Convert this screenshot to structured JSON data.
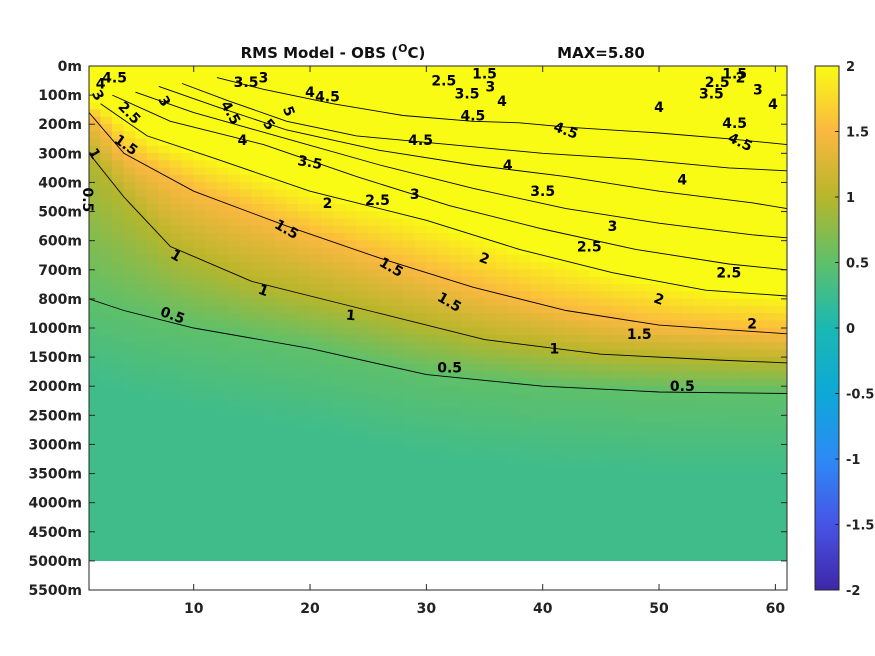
{
  "chart_data": {
    "type": "heatmap",
    "title_parts": {
      "pre": "RMS Model - OBS (",
      "sup": "O",
      "post": "C)"
    },
    "max_label": "MAX=5.80",
    "x_ticks": [
      "10",
      "20",
      "30",
      "40",
      "50",
      "60"
    ],
    "x_tick_values": [
      10,
      20,
      30,
      40,
      50,
      60
    ],
    "xlim": [
      1,
      61
    ],
    "y_ticks": [
      "0m",
      "100m",
      "200m",
      "300m",
      "400m",
      "500m",
      "600m",
      "700m",
      "800m",
      "1000m",
      "1500m",
      "2000m",
      "2500m",
      "3000m",
      "3500m",
      "4000m",
      "4500m",
      "5000m",
      "5500m"
    ],
    "clim": [
      -2,
      2
    ],
    "colorbar_ticks": [
      "2",
      "1.5",
      "1",
      "0.5",
      "0",
      "-0.5",
      "-1",
      "-1.5",
      "-2"
    ],
    "colorbar_values": [
      2,
      1.5,
      1,
      0.5,
      0,
      -0.5,
      -1,
      -1.5,
      -2
    ],
    "contour_levels": [
      0.5,
      1,
      1.5,
      2,
      2.5,
      3,
      3.5,
      4,
      4.5
    ],
    "contours": [
      {
        "level": 0.5,
        "points": [
          [
            1,
            8.0
          ],
          [
            4,
            8.4
          ],
          [
            10,
            9.0
          ],
          [
            20,
            9.7
          ],
          [
            30,
            10.6
          ],
          [
            40,
            11.0
          ],
          [
            50,
            11.2
          ],
          [
            61,
            11.25
          ]
        ]
      },
      {
        "level": 1,
        "points": [
          [
            1,
            3.0
          ],
          [
            4,
            4.5
          ],
          [
            8,
            6.2
          ],
          [
            15,
            7.4
          ],
          [
            25,
            8.4
          ],
          [
            35,
            9.4
          ],
          [
            45,
            9.9
          ],
          [
            55,
            10.1
          ],
          [
            61,
            10.2
          ]
        ]
      },
      {
        "level": 1.5,
        "points": [
          [
            1,
            1.6
          ],
          [
            4,
            3.0
          ],
          [
            10,
            4.3
          ],
          [
            18,
            5.5
          ],
          [
            26,
            6.6
          ],
          [
            34,
            7.6
          ],
          [
            42,
            8.4
          ],
          [
            50,
            8.9
          ],
          [
            61,
            9.2
          ]
        ]
      },
      {
        "level": 2,
        "points": [
          [
            2,
            1.3
          ],
          [
            6,
            2.4
          ],
          [
            12,
            3.2
          ],
          [
            20,
            4.3
          ],
          [
            30,
            5.3
          ],
          [
            38,
            6.3
          ],
          [
            46,
            7.1
          ],
          [
            54,
            7.7
          ],
          [
            61,
            7.9
          ]
        ]
      },
      {
        "level": 2.5,
        "points": [
          [
            3,
            1.0
          ],
          [
            8,
            1.9
          ],
          [
            16,
            2.7
          ],
          [
            24,
            3.8
          ],
          [
            32,
            4.8
          ],
          [
            40,
            5.6
          ],
          [
            48,
            6.3
          ],
          [
            56,
            6.8
          ],
          [
            61,
            7.0
          ]
        ]
      },
      {
        "level": 3,
        "points": [
          [
            5,
            0.9
          ],
          [
            10,
            1.6
          ],
          [
            18,
            2.5
          ],
          [
            26,
            3.4
          ],
          [
            34,
            4.2
          ],
          [
            42,
            4.9
          ],
          [
            50,
            5.4
          ],
          [
            58,
            5.8
          ],
          [
            61,
            5.9
          ]
        ]
      },
      {
        "level": 3.5,
        "points": [
          [
            7,
            0.7
          ],
          [
            12,
            1.4
          ],
          [
            18,
            2.2
          ],
          [
            26,
            2.9
          ],
          [
            34,
            3.4
          ],
          [
            42,
            3.8
          ],
          [
            50,
            4.3
          ],
          [
            58,
            4.7
          ],
          [
            61,
            4.9
          ]
        ]
      },
      {
        "level": 4,
        "points": [
          [
            9,
            0.6
          ],
          [
            13,
            1.2
          ],
          [
            18,
            1.9
          ],
          [
            24,
            2.4
          ],
          [
            32,
            2.7
          ],
          [
            40,
            3.0
          ],
          [
            48,
            3.2
          ],
          [
            56,
            3.5
          ],
          [
            61,
            3.6
          ]
        ]
      },
      {
        "level": 4.5,
        "points": [
          [
            12,
            0.4
          ],
          [
            16,
            0.8
          ],
          [
            22,
            1.3
          ],
          [
            28,
            1.7
          ],
          [
            34,
            1.9
          ],
          [
            38,
            1.95
          ],
          [
            42,
            2.1
          ],
          [
            50,
            2.3
          ],
          [
            56,
            2.5
          ],
          [
            61,
            2.7
          ]
        ]
      }
    ],
    "contour_labels": [
      {
        "text": "0.5",
        "x": 8.2,
        "y": 8.55,
        "angle": 20
      },
      {
        "text": "1",
        "x": 23.5,
        "y": 8.55,
        "angle": 5
      },
      {
        "text": "0.5",
        "x": 32,
        "y": 10.35,
        "angle": 0
      },
      {
        "text": "0.5",
        "x": 52,
        "y": 11.0,
        "angle": 0
      },
      {
        "text": "1",
        "x": 41,
        "y": 9.7,
        "angle": 0
      },
      {
        "text": "1",
        "x": 8.5,
        "y": 6.5,
        "angle": 30
      },
      {
        "text": "1",
        "x": 16,
        "y": 7.7,
        "angle": 20
      },
      {
        "text": "1",
        "x": 1.5,
        "y": 3.0,
        "angle": 60
      },
      {
        "text": "0.5",
        "x": 0.9,
        "y": 4.6,
        "angle": 90
      },
      {
        "text": "1.5",
        "x": 4.2,
        "y": 2.7,
        "angle": 35
      },
      {
        "text": "1.5",
        "x": 18,
        "y": 5.6,
        "angle": 30
      },
      {
        "text": "1.5",
        "x": 27,
        "y": 6.9,
        "angle": 30
      },
      {
        "text": "1.5",
        "x": 32,
        "y": 8.1,
        "angle": 30
      },
      {
        "text": "1.5",
        "x": 48.3,
        "y": 9.2,
        "angle": 0
      },
      {
        "text": "2",
        "x": 21.5,
        "y": 4.7,
        "angle": 0
      },
      {
        "text": "2",
        "x": 35,
        "y": 6.6,
        "angle": 20
      },
      {
        "text": "2",
        "x": 50,
        "y": 8.0,
        "angle": 20
      },
      {
        "text": "2",
        "x": 58,
        "y": 8.85,
        "angle": 0
      },
      {
        "text": "2.5",
        "x": 4.5,
        "y": 1.6,
        "angle": 45
      },
      {
        "text": "2.5",
        "x": 25.8,
        "y": 4.6,
        "angle": 0
      },
      {
        "text": "2.5",
        "x": 44,
        "y": 6.2,
        "angle": 0
      },
      {
        "text": "2.5",
        "x": 56,
        "y": 7.1,
        "angle": 0
      },
      {
        "text": "3",
        "x": 29,
        "y": 4.4,
        "angle": 0
      },
      {
        "text": "3",
        "x": 46,
        "y": 5.5,
        "angle": 0
      },
      {
        "text": "3.5",
        "x": 20,
        "y": 3.3,
        "angle": 10
      },
      {
        "text": "3.5",
        "x": 40,
        "y": 4.3,
        "angle": 0
      },
      {
        "text": "4",
        "x": 14.2,
        "y": 2.55,
        "angle": 0
      },
      {
        "text": "4",
        "x": 37,
        "y": 3.4,
        "angle": 0
      },
      {
        "text": "4",
        "x": 52,
        "y": 3.9,
        "angle": 0
      },
      {
        "text": "4.5",
        "x": 13.2,
        "y": 1.6,
        "angle": 60
      },
      {
        "text": "4.5",
        "x": 29.5,
        "y": 2.55,
        "angle": 0
      },
      {
        "text": "4.5",
        "x": 42,
        "y": 2.2,
        "angle": 20
      },
      {
        "text": "4.5",
        "x": 57,
        "y": 2.6,
        "angle": 25
      },
      {
        "text": "4.5",
        "x": 56.5,
        "y": 1.95,
        "angle": 0
      },
      {
        "text": "4.5",
        "x": 34,
        "y": 1.7,
        "angle": 0
      },
      {
        "text": "5",
        "x": 16.5,
        "y": 2.0,
        "angle": 50
      },
      {
        "text": "5",
        "x": 18.2,
        "y": 1.55,
        "angle": 70
      },
      {
        "text": "4",
        "x": 50,
        "y": 1.4,
        "angle": 0
      },
      {
        "text": "4",
        "x": 59.8,
        "y": 1.3,
        "angle": 0
      },
      {
        "text": "4",
        "x": 36.5,
        "y": 1.2,
        "angle": 0
      },
      {
        "text": "4.5",
        "x": 21.5,
        "y": 1.05,
        "angle": 0
      },
      {
        "text": "3.5",
        "x": 54.5,
        "y": 0.95,
        "angle": 0
      },
      {
        "text": "3.5",
        "x": 33.5,
        "y": 0.95,
        "angle": 0
      },
      {
        "text": "3",
        "x": 58.5,
        "y": 0.8,
        "angle": 0
      },
      {
        "text": "3",
        "x": 35.5,
        "y": 0.7,
        "angle": 0
      },
      {
        "text": "2.5",
        "x": 55,
        "y": 0.55,
        "angle": 0
      },
      {
        "text": "2.5",
        "x": 31.5,
        "y": 0.5,
        "angle": 0
      },
      {
        "text": "2",
        "x": 57,
        "y": 0.4,
        "angle": 0
      },
      {
        "text": "1.5",
        "x": 35,
        "y": 0.25,
        "angle": 0
      },
      {
        "text": "1.5",
        "x": 56.5,
        "y": 0.25,
        "angle": 0
      },
      {
        "text": "3.5",
        "x": 14.5,
        "y": 0.55,
        "angle": 0
      },
      {
        "text": "3",
        "x": 16,
        "y": 0.4,
        "angle": 0
      },
      {
        "text": "4.5",
        "x": 3.2,
        "y": 0.4,
        "angle": 0
      },
      {
        "text": "4",
        "x": 2.0,
        "y": 0.6,
        "angle": 0
      },
      {
        "text": "3",
        "x": 1.8,
        "y": 1.0,
        "angle": 60
      },
      {
        "text": "3",
        "x": 7.5,
        "y": 1.2,
        "angle": 60
      },
      {
        "text": "4",
        "x": 20,
        "y": 0.9,
        "angle": 0
      }
    ],
    "no_data_below_index": 17
  }
}
